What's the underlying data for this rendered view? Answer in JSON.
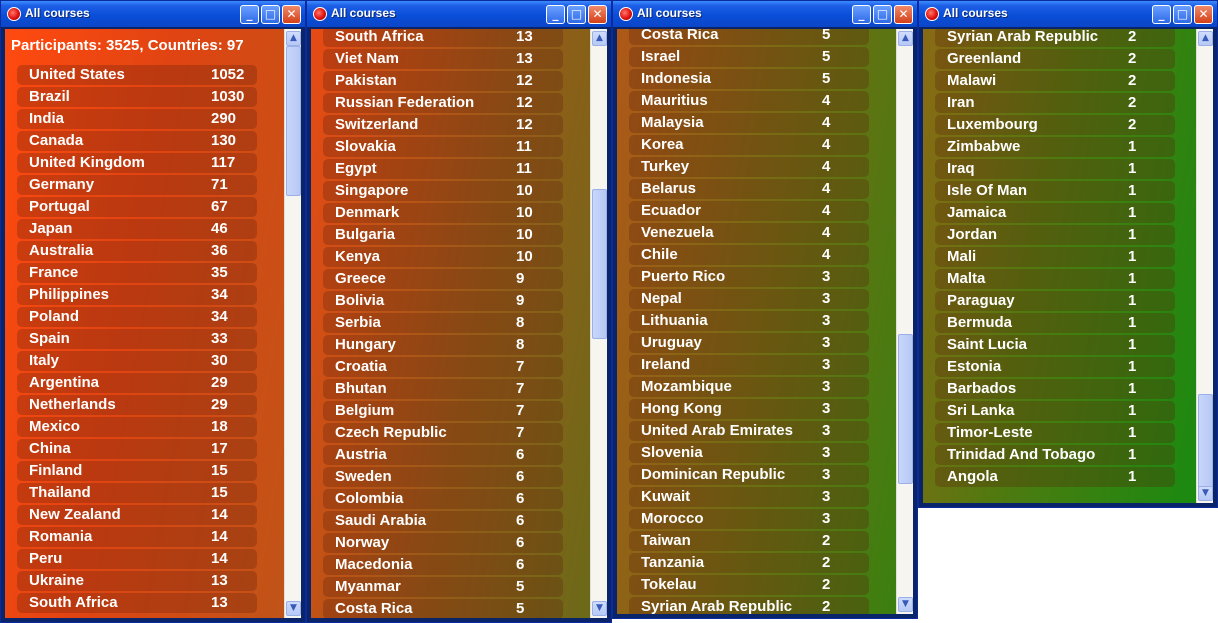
{
  "windows": [
    {
      "title": "All courses",
      "header": "Participants: 3525, Countries: 97",
      "rows": [
        {
          "country": "United States",
          "count": "1052"
        },
        {
          "country": "Brazil",
          "count": "1030"
        },
        {
          "country": "India",
          "count": "290"
        },
        {
          "country": "Canada",
          "count": "130"
        },
        {
          "country": "United Kingdom",
          "count": "117"
        },
        {
          "country": "Germany",
          "count": "71"
        },
        {
          "country": "Portugal",
          "count": "67"
        },
        {
          "country": "Japan",
          "count": "46"
        },
        {
          "country": "Australia",
          "count": "36"
        },
        {
          "country": "France",
          "count": "35"
        },
        {
          "country": "Philippines",
          "count": "34"
        },
        {
          "country": "Poland",
          "count": "34"
        },
        {
          "country": "Spain",
          "count": "33"
        },
        {
          "country": "Italy",
          "count": "30"
        },
        {
          "country": "Argentina",
          "count": "29"
        },
        {
          "country": "Netherlands",
          "count": "29"
        },
        {
          "country": "Mexico",
          "count": "18"
        },
        {
          "country": "China",
          "count": "17"
        },
        {
          "country": "Finland",
          "count": "15"
        },
        {
          "country": "Thailand",
          "count": "15"
        },
        {
          "country": "New Zealand",
          "count": "14"
        },
        {
          "country": "Romania",
          "count": "14"
        },
        {
          "country": "Peru",
          "count": "14"
        },
        {
          "country": "Ukraine",
          "count": "13"
        },
        {
          "country": "South Africa",
          "count": "13"
        }
      ]
    },
    {
      "title": "All courses",
      "rows": [
        {
          "country": "South Africa",
          "count": "13"
        },
        {
          "country": "Viet Nam",
          "count": "13"
        },
        {
          "country": "Pakistan",
          "count": "12"
        },
        {
          "country": "Russian Federation",
          "count": "12"
        },
        {
          "country": "Switzerland",
          "count": "12"
        },
        {
          "country": "Slovakia",
          "count": "11"
        },
        {
          "country": "Egypt",
          "count": "11"
        },
        {
          "country": "Singapore",
          "count": "10"
        },
        {
          "country": "Denmark",
          "count": "10"
        },
        {
          "country": "Bulgaria",
          "count": "10"
        },
        {
          "country": "Kenya",
          "count": "10"
        },
        {
          "country": "Greece",
          "count": "9"
        },
        {
          "country": "Bolivia",
          "count": "9"
        },
        {
          "country": "Serbia",
          "count": "8"
        },
        {
          "country": "Hungary",
          "count": "8"
        },
        {
          "country": "Croatia",
          "count": "7"
        },
        {
          "country": "Bhutan",
          "count": "7"
        },
        {
          "country": "Belgium",
          "count": "7"
        },
        {
          "country": "Czech Republic",
          "count": "7"
        },
        {
          "country": "Austria",
          "count": "6"
        },
        {
          "country": "Sweden",
          "count": "6"
        },
        {
          "country": "Colombia",
          "count": "6"
        },
        {
          "country": "Saudi Arabia",
          "count": "6"
        },
        {
          "country": "Norway",
          "count": "6"
        },
        {
          "country": "Macedonia",
          "count": "6"
        },
        {
          "country": "Myanmar",
          "count": "5"
        },
        {
          "country": "Costa Rica",
          "count": "5"
        }
      ]
    },
    {
      "title": "All courses",
      "rows": [
        {
          "country": "Costa Rica",
          "count": "5"
        },
        {
          "country": "Israel",
          "count": "5"
        },
        {
          "country": "Indonesia",
          "count": "5"
        },
        {
          "country": "Mauritius",
          "count": "4"
        },
        {
          "country": "Malaysia",
          "count": "4"
        },
        {
          "country": "Korea",
          "count": "4"
        },
        {
          "country": "Turkey",
          "count": "4"
        },
        {
          "country": "Belarus",
          "count": "4"
        },
        {
          "country": "Ecuador",
          "count": "4"
        },
        {
          "country": "Venezuela",
          "count": "4"
        },
        {
          "country": "Chile",
          "count": "4"
        },
        {
          "country": "Puerto Rico",
          "count": "3"
        },
        {
          "country": "Nepal",
          "count": "3"
        },
        {
          "country": "Lithuania",
          "count": "3"
        },
        {
          "country": "Uruguay",
          "count": "3"
        },
        {
          "country": "Ireland",
          "count": "3"
        },
        {
          "country": "Mozambique",
          "count": "3"
        },
        {
          "country": "Hong Kong",
          "count": "3"
        },
        {
          "country": "United Arab Emirates",
          "count": "3"
        },
        {
          "country": "Slovenia",
          "count": "3"
        },
        {
          "country": "Dominican Republic",
          "count": "3"
        },
        {
          "country": "Kuwait",
          "count": "3"
        },
        {
          "country": "Morocco",
          "count": "3"
        },
        {
          "country": "Taiwan",
          "count": "2"
        },
        {
          "country": "Tanzania",
          "count": "2"
        },
        {
          "country": "Tokelau",
          "count": "2"
        },
        {
          "country": "Syrian Arab Republic",
          "count": "2"
        }
      ]
    },
    {
      "title": "All courses",
      "rows": [
        {
          "country": "Syrian Arab Republic",
          "count": "2"
        },
        {
          "country": "Greenland",
          "count": "2"
        },
        {
          "country": "Malawi",
          "count": "2"
        },
        {
          "country": "Iran",
          "count": "2"
        },
        {
          "country": "Luxembourg",
          "count": "2"
        },
        {
          "country": "Zimbabwe",
          "count": "1"
        },
        {
          "country": "Iraq",
          "count": "1"
        },
        {
          "country": "Isle Of Man",
          "count": "1"
        },
        {
          "country": "Jamaica",
          "count": "1"
        },
        {
          "country": "Jordan",
          "count": "1"
        },
        {
          "country": "Mali",
          "count": "1"
        },
        {
          "country": "Malta",
          "count": "1"
        },
        {
          "country": "Paraguay",
          "count": "1"
        },
        {
          "country": "Bermuda",
          "count": "1"
        },
        {
          "country": "Saint Lucia",
          "count": "1"
        },
        {
          "country": "Estonia",
          "count": "1"
        },
        {
          "country": "Barbados",
          "count": "1"
        },
        {
          "country": "Sri Lanka",
          "count": "1"
        },
        {
          "country": "Timor-Leste",
          "count": "1"
        },
        {
          "country": "Trinidad And Tobago",
          "count": "1"
        },
        {
          "country": "Angola",
          "count": "1"
        }
      ]
    }
  ],
  "icons": {
    "minimize": "minimize-icon",
    "maximize": "maximize-icon",
    "close": "close-icon",
    "scroll_up": "scroll-up-arrow",
    "scroll_down": "scroll-down-arrow"
  }
}
